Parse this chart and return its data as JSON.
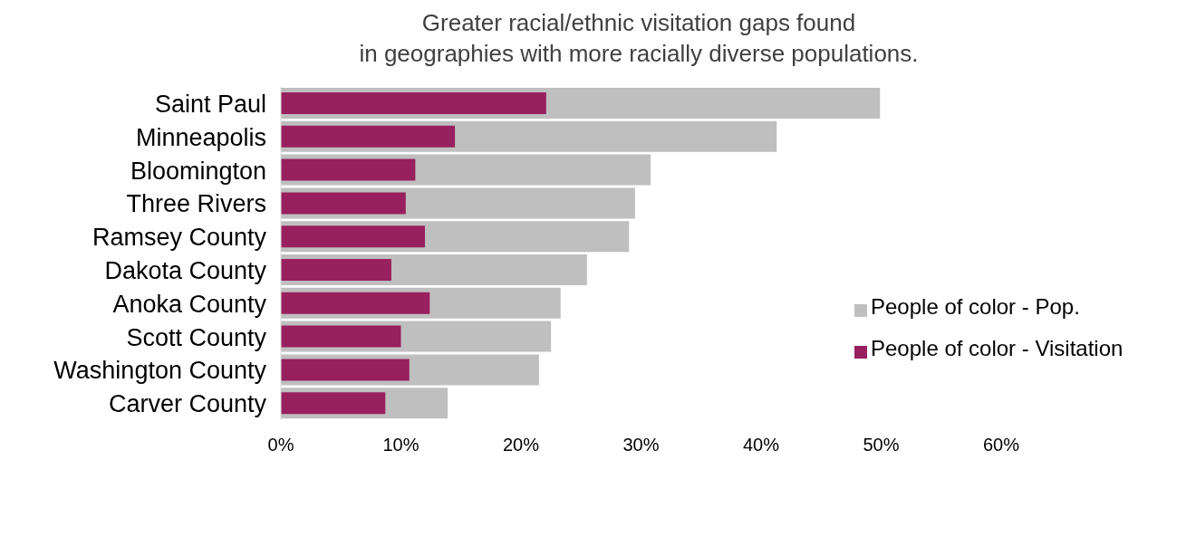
{
  "chart_data": {
    "type": "bar",
    "orientation": "horizontal",
    "title": "Greater racial/ethnic visitation gaps found\nin geographies with more racially diverse populations.",
    "categories": [
      "Saint Paul",
      "Minneapolis",
      "Bloomington",
      "Three Rivers",
      "Ramsey County",
      "Dakota County",
      "Anoka County",
      "Scott County",
      "Washington County",
      "Carver County"
    ],
    "series": [
      {
        "name": "People of color - Pop.",
        "color": "#bfbfbf",
        "values": [
          49.9,
          41.3,
          30.8,
          29.5,
          29.0,
          25.5,
          23.3,
          22.5,
          21.5,
          13.9
        ]
      },
      {
        "name": "People of color - Visitation",
        "color": "#98205f",
        "values": [
          22.1,
          14.5,
          11.2,
          10.4,
          12.0,
          9.2,
          12.4,
          10.0,
          10.7,
          8.7
        ]
      }
    ],
    "xlim": [
      0,
      60
    ],
    "xticks": [
      {
        "value": 0,
        "label": "0%"
      },
      {
        "value": 10,
        "label": "10%"
      },
      {
        "value": 20,
        "label": "20%"
      },
      {
        "value": 30,
        "label": "30%"
      },
      {
        "value": 40,
        "label": "40%"
      },
      {
        "value": 50,
        "label": "50%"
      },
      {
        "value": 60,
        "label": "60%"
      }
    ],
    "grid": false,
    "legend": "right"
  }
}
